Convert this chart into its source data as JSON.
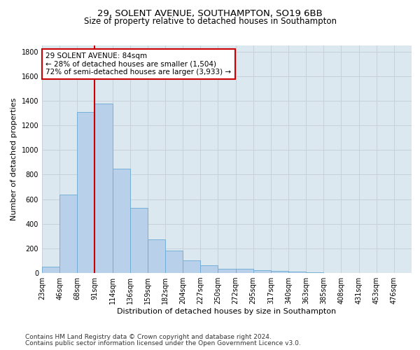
{
  "title1": "29, SOLENT AVENUE, SOUTHAMPTON, SO19 6BB",
  "title2": "Size of property relative to detached houses in Southampton",
  "xlabel": "Distribution of detached houses by size in Southampton",
  "ylabel": "Number of detached properties",
  "bar_labels": [
    "23sqm",
    "46sqm",
    "68sqm",
    "91sqm",
    "114sqm",
    "136sqm",
    "159sqm",
    "182sqm",
    "204sqm",
    "227sqm",
    "250sqm",
    "272sqm",
    "295sqm",
    "317sqm",
    "340sqm",
    "363sqm",
    "385sqm",
    "408sqm",
    "431sqm",
    "453sqm",
    "476sqm"
  ],
  "bar_values": [
    50,
    640,
    1310,
    1380,
    850,
    530,
    275,
    185,
    105,
    65,
    35,
    35,
    25,
    15,
    10,
    5,
    0,
    0,
    0,
    0,
    0
  ],
  "bar_color": "#b8d0ea",
  "bar_edge_color": "#6aaad4",
  "vline_x": 3.0,
  "vline_color": "#cc0000",
  "annotation_line1": "29 SOLENT AVENUE: 84sqm",
  "annotation_line2": "← 28% of detached houses are smaller (1,504)",
  "annotation_line3": "72% of semi-detached houses are larger (3,933) →",
  "annotation_box_color": "#cc0000",
  "ylim": [
    0,
    1850
  ],
  "yticks": [
    0,
    200,
    400,
    600,
    800,
    1000,
    1200,
    1400,
    1600,
    1800
  ],
  "grid_color": "#c8d0dc",
  "bg_color": "#dce8f0",
  "footnote1": "Contains HM Land Registry data © Crown copyright and database right 2024.",
  "footnote2": "Contains public sector information licensed under the Open Government Licence v3.0.",
  "title1_fontsize": 9.5,
  "title2_fontsize": 8.5,
  "xlabel_fontsize": 8,
  "ylabel_fontsize": 8,
  "tick_fontsize": 7,
  "annotation_fontsize": 7.5,
  "footnote_fontsize": 6.5
}
